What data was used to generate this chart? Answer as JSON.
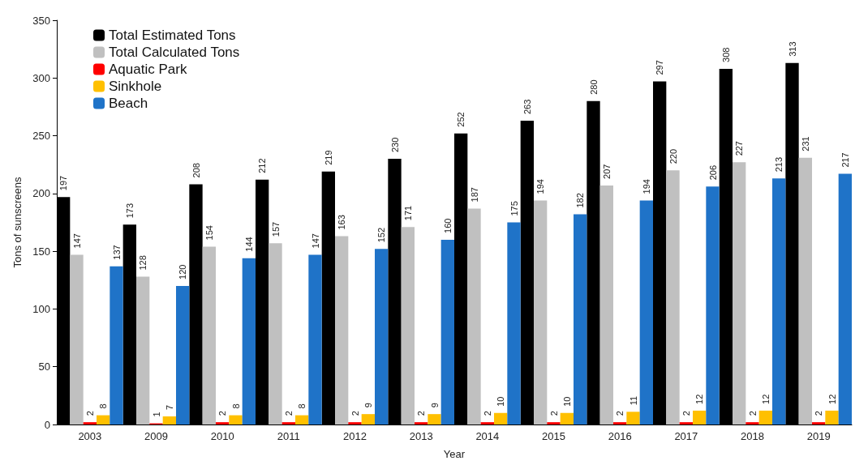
{
  "chart_data": {
    "type": "bar",
    "xlabel": "Year",
    "ylabel": "Tons of sunscreens",
    "categories": [
      "2003",
      "2009",
      "2010",
      "2011",
      "2012",
      "2013",
      "2014",
      "2015",
      "2016",
      "2017",
      "2018",
      "2019"
    ],
    "series": [
      {
        "name": "Total Estimated Tons",
        "color": "#000000",
        "values": [
          197,
          173,
          208,
          212,
          219,
          230,
          252,
          263,
          280,
          297,
          308,
          313
        ]
      },
      {
        "name": "Total Calculated Tons",
        "color": "#c0c0c0",
        "values": [
          147,
          128,
          154,
          157,
          163,
          171,
          187,
          194,
          207,
          220,
          227,
          231
        ]
      },
      {
        "name": "Aquatic Park",
        "color": "#ff0000",
        "values": [
          2,
          1,
          2,
          2,
          2,
          2,
          2,
          2,
          2,
          2,
          2,
          2
        ]
      },
      {
        "name": "Sinkhole",
        "color": "#ffc000",
        "values": [
          8,
          7,
          8,
          8,
          9,
          9,
          10,
          10,
          11,
          12,
          12,
          12
        ]
      },
      {
        "name": "Beach",
        "color": "#1f73c8",
        "values": [
          137,
          120,
          144,
          147,
          152,
          160,
          175,
          182,
          194,
          206,
          213,
          217
        ]
      }
    ],
    "ylim": [
      0,
      350
    ],
    "yticks": [
      0,
      50,
      100,
      150,
      200,
      250,
      300,
      350
    ],
    "data_labels": true,
    "grid": false,
    "legend": "top left"
  }
}
